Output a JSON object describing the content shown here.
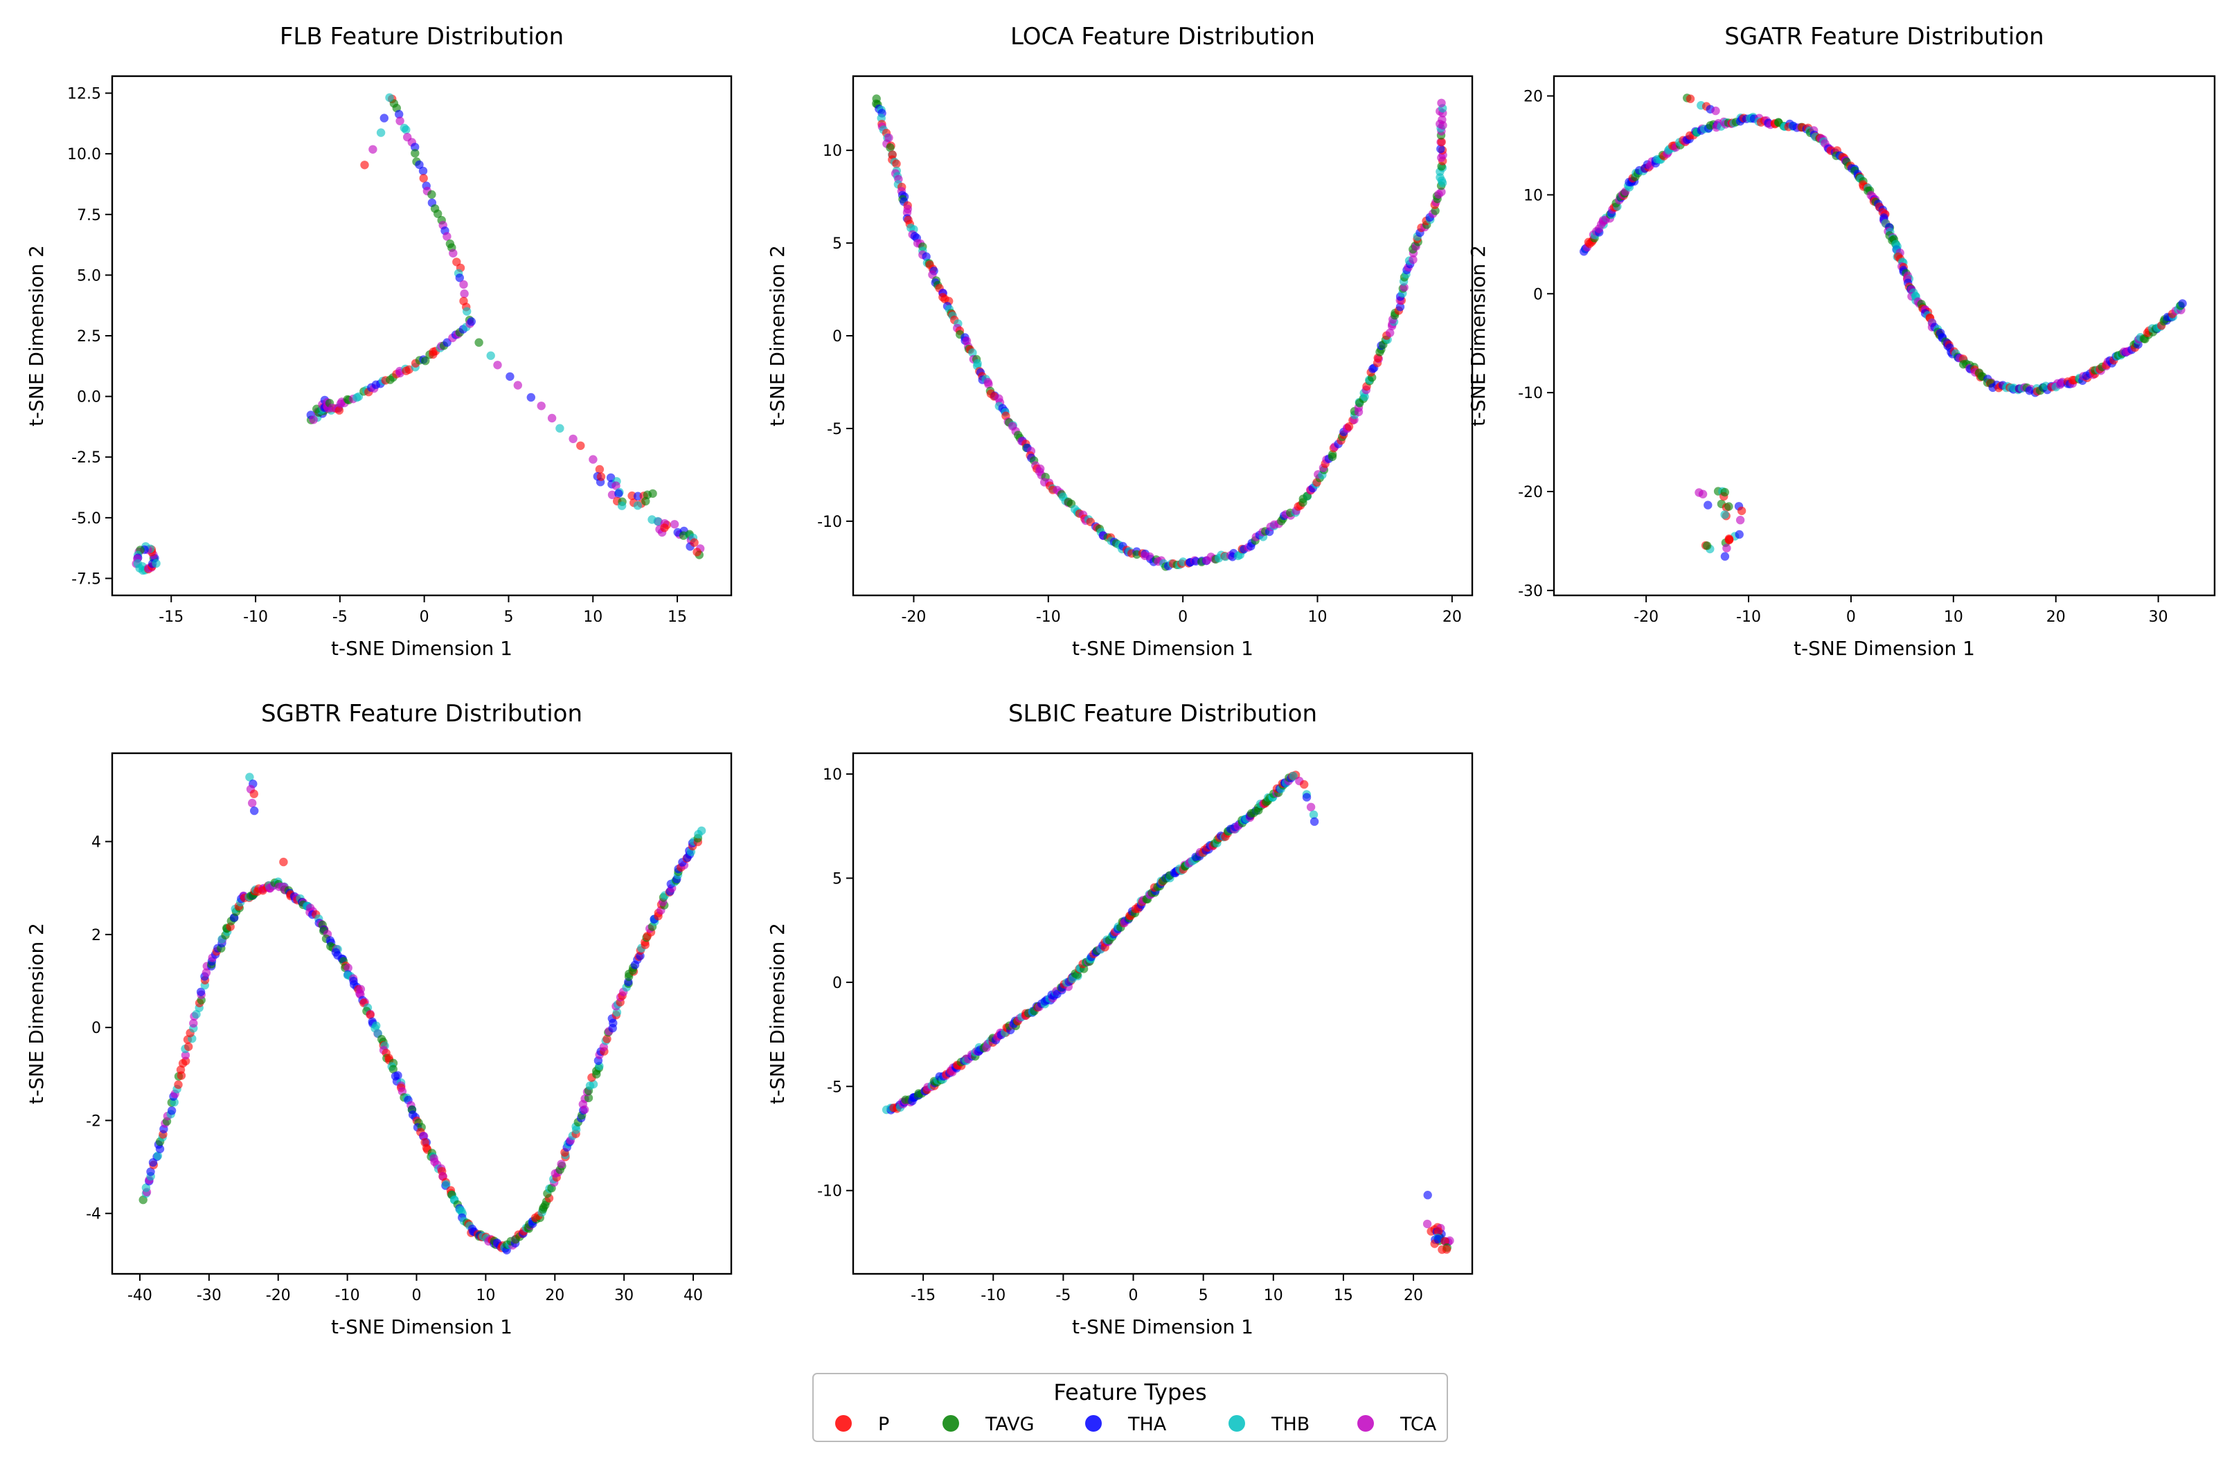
{
  "legend": {
    "title": "Feature Types",
    "items": [
      {
        "label": "P",
        "color": "#ff0000"
      },
      {
        "label": "TAVG",
        "color": "#008000"
      },
      {
        "label": "THA",
        "color": "#0000ff"
      },
      {
        "label": "THB",
        "color": "#00bfbf"
      },
      {
        "label": "TCA",
        "color": "#bf00bf"
      }
    ]
  },
  "chart_data": [
    {
      "type": "scatter",
      "title": "FLB Feature Distribution",
      "xlabel": "t-SNE Dimension 1",
      "ylabel": "t-SNE Dimension 2",
      "xlim": [
        -18.5,
        18.2
      ],
      "ylim": [
        -8.2,
        13.2
      ],
      "xticks": [
        -15,
        -10,
        -5,
        0,
        5,
        10,
        15
      ],
      "yticks": [
        -7.5,
        -5.0,
        -2.5,
        0.0,
        2.5,
        5.0,
        7.5,
        10.0,
        12.5
      ],
      "ytick_decimals": 1,
      "segments": [
        {
          "points": [
            [
              -2.0,
              12.3
            ],
            [
              -0.8,
              10.5
            ],
            [
              0.8,
              7.5
            ],
            [
              2.0,
              5.5
            ],
            [
              2.6,
              3.2
            ]
          ],
          "n": 38
        },
        {
          "points": [
            [
              -6.8,
              -0.9
            ],
            [
              -4.0,
              0.0
            ],
            [
              0.0,
              1.5
            ],
            [
              2.8,
              3.0
            ]
          ],
          "n": 55
        },
        {
          "points": [
            [
              -6.5,
              -0.8
            ],
            [
              -5.8,
              -0.3
            ],
            [
              -5.0,
              -0.4
            ]
          ],
          "n": 18,
          "jitter": 0.25
        },
        {
          "points": [
            [
              -3.5,
              9.5
            ],
            [
              -2.5,
              11.0
            ],
            [
              -2.0,
              12.3
            ]
          ],
          "n": 5
        },
        {
          "points": [
            [
              3.3,
              2.2
            ],
            [
              5.0,
              0.8
            ],
            [
              8.5,
              -1.5
            ],
            [
              10.5,
              -3.0
            ]
          ],
          "n": 13
        },
        {
          "points": [
            [
              10.5,
              -3.2
            ],
            [
              12.0,
              -4.3
            ],
            [
              13.3,
              -4.2
            ]
          ],
          "n": 22,
          "jitter": 0.35
        },
        {
          "points": [
            [
              13.5,
              -5.3
            ],
            [
              15.5,
              -5.6
            ],
            [
              16.5,
              -6.4
            ]
          ],
          "n": 22,
          "jitter": 0.4
        },
        {
          "ring": [
            -16.5,
            -6.7,
            0.55,
            0.45
          ],
          "n": 26
        }
      ]
    },
    {
      "type": "scatter",
      "title": "LOCA Feature Distribution",
      "xlabel": "t-SNE Dimension 1",
      "ylabel": "t-SNE Dimension 2",
      "xlim": [
        -24.5,
        21.5
      ],
      "ylim": [
        -14.0,
        14.0
      ],
      "xticks": [
        -20,
        -10,
        0,
        10,
        20
      ],
      "yticks": [
        -10,
        -5,
        0,
        5,
        10
      ],
      "ytick_decimals": 0,
      "segments": [
        {
          "points": [
            [
              -22.8,
              12.8
            ],
            [
              -20.0,
              5.5
            ],
            [
              -15.0,
              -2.0
            ],
            [
              -10.0,
              -8.0
            ],
            [
              -5.0,
              -11.3
            ],
            [
              -1.0,
              -12.4
            ],
            [
              4.0,
              -11.8
            ],
            [
              9.0,
              -9.0
            ],
            [
              13.0,
              -4.0
            ],
            [
              16.0,
              1.5
            ],
            [
              17.5,
              5.5
            ],
            [
              18.5,
              6.5
            ],
            [
              19.2,
              8.0
            ],
            [
              19.2,
              12.5
            ]
          ],
          "n": 360
        }
      ]
    },
    {
      "type": "scatter",
      "title": "SGATR Feature Distribution",
      "xlabel": "t-SNE Dimension 1",
      "ylabel": "t-SNE Dimension 2",
      "xlim": [
        -29.0,
        35.5
      ],
      "ylim": [
        -30.5,
        22.0
      ],
      "xticks": [
        -20,
        -10,
        0,
        10,
        20,
        30
      ],
      "yticks": [
        -30,
        -20,
        -10,
        0,
        10,
        20
      ],
      "ytick_decimals": 0,
      "segments": [
        {
          "points": [
            [
              -26.0,
              4.2
            ],
            [
              -21.0,
              12.0
            ],
            [
              -15.0,
              16.5
            ],
            [
              -10.0,
              17.8
            ],
            [
              -4.0,
              16.5
            ],
            [
              0.0,
              13.0
            ],
            [
              3.0,
              8.5
            ],
            [
              6.0,
              0.0
            ],
            [
              10.0,
              -6.0
            ],
            [
              14.0,
              -9.3
            ],
            [
              18.0,
              -9.8
            ],
            [
              23.0,
              -8.5
            ],
            [
              28.0,
              -5.0
            ],
            [
              32.5,
              -1.2
            ]
          ],
          "n": 400
        },
        {
          "points": [
            [
              -16.0,
              19.8
            ],
            [
              -13.0,
              18.8
            ]
          ],
          "n": 6,
          "jitter": 0.2
        },
        {
          "points": [
            [
              -15.0,
              -21.0
            ],
            [
              -12.0,
              -21.0
            ],
            [
              -11.0,
              -24.0
            ],
            [
              -13.5,
              -26.5
            ]
          ],
          "n": 26,
          "jitter": 0.6
        }
      ]
    },
    {
      "type": "scatter",
      "title": "SGBTR Feature Distribution",
      "xlabel": "t-SNE Dimension 1",
      "ylabel": "t-SNE Dimension 2",
      "xlim": [
        -44.0,
        45.5
      ],
      "ylim": [
        -5.3,
        5.9
      ],
      "xticks": [
        -40,
        -30,
        -20,
        -10,
        0,
        10,
        20,
        30,
        40
      ],
      "yticks": [
        -4,
        -2,
        0,
        2,
        4
      ],
      "ytick_decimals": 0,
      "segments": [
        {
          "points": [
            [
              -39.5,
              -3.7
            ],
            [
              -35.0,
              -1.5
            ],
            [
              -30.0,
              1.3
            ],
            [
              -25.0,
              2.8
            ],
            [
              -20.0,
              3.1
            ],
            [
              -15.0,
              2.5
            ],
            [
              -8.0,
              0.7
            ],
            [
              -3.0,
              -1.0
            ],
            [
              2.0,
              -2.7
            ],
            [
              8.0,
              -4.4
            ],
            [
              13.0,
              -4.75
            ],
            [
              18.0,
              -4.0
            ],
            [
              23.0,
              -2.2
            ],
            [
              30.0,
              0.8
            ],
            [
              35.0,
              2.5
            ],
            [
              41.0,
              4.2
            ]
          ],
          "n": 420
        },
        {
          "points": [
            [
              -24.0,
              5.4
            ],
            [
              -23.5,
              4.7
            ]
          ],
          "n": 6
        },
        {
          "points": [
            [
              -19.0,
              3.55
            ]
          ],
          "n": 1
        }
      ]
    },
    {
      "type": "scatter",
      "title": "SLBIC Feature Distribution",
      "xlabel": "t-SNE Dimension 1",
      "ylabel": "t-SNE Dimension 2",
      "xlim": [
        -20.0,
        24.2
      ],
      "ylim": [
        -14.0,
        11.0
      ],
      "xticks": [
        -15,
        -10,
        -5,
        0,
        5,
        10,
        15,
        20
      ],
      "yticks": [
        -10,
        -5,
        0,
        5,
        10
      ],
      "ytick_decimals": 0,
      "segments": [
        {
          "points": [
            [
              -17.5,
              -6.2
            ],
            [
              -15.5,
              -5.5
            ],
            [
              -5.0,
              -0.3
            ],
            [
              2.0,
              4.8
            ],
            [
              3.5,
              5.5
            ],
            [
              8.0,
              7.8
            ],
            [
              11.5,
              9.9
            ]
          ],
          "n": 300
        },
        {
          "points": [
            [
              11.5,
              9.9
            ],
            [
              12.2,
              9.3
            ],
            [
              13.0,
              7.8
            ]
          ],
          "n": 8
        },
        {
          "points": [
            [
              21.2,
              -11.8
            ],
            [
              22.3,
              -12.9
            ]
          ],
          "n": 22,
          "jitter": 0.45
        },
        {
          "points": [
            [
              21.0,
              -10.3
            ]
          ],
          "n": 1
        }
      ]
    }
  ]
}
